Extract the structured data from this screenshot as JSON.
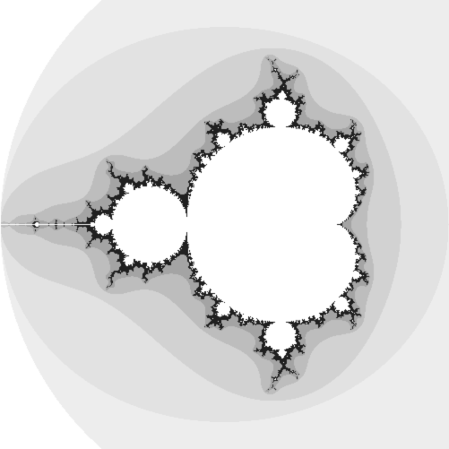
{
  "image": {
    "subject": "mandelbrot-set",
    "colors": {
      "background": "#ffffff",
      "interior": "#ffffff",
      "boundary_dark": "#202020",
      "band_1": "#ededed",
      "band_2": "#e2e2e2",
      "band_3": "#d2d2d2",
      "band_4": "#bdbdbd",
      "band_5": "#a4a4a4"
    }
  }
}
